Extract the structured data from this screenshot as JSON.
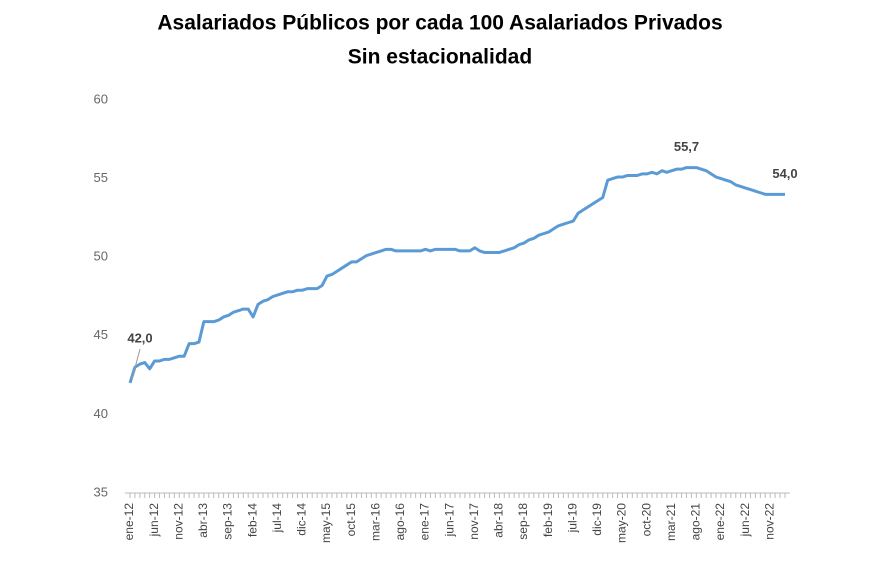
{
  "chart_data": {
    "type": "line",
    "title": "Asalariados Públicos por cada 100 Asalariados Privados",
    "subtitle": "Sin estacionalidad",
    "categories": [
      "ene-12",
      null,
      null,
      null,
      null,
      "jun-12",
      null,
      null,
      null,
      null,
      "nov-12",
      null,
      null,
      null,
      null,
      "abr-13",
      null,
      null,
      null,
      null,
      "sep-13",
      null,
      null,
      null,
      null,
      "feb-14",
      null,
      null,
      null,
      null,
      "jul-14",
      null,
      null,
      null,
      null,
      "dic-14",
      null,
      null,
      null,
      null,
      "may-15",
      null,
      null,
      null,
      null,
      "oct-15",
      null,
      null,
      null,
      null,
      "mar-16",
      null,
      null,
      null,
      null,
      "ago-16",
      null,
      null,
      null,
      null,
      "ene-17",
      null,
      null,
      null,
      null,
      "jun-17",
      null,
      null,
      null,
      null,
      "nov-17",
      null,
      null,
      null,
      null,
      "abr-18",
      null,
      null,
      null,
      null,
      "sep-18",
      null,
      null,
      null,
      null,
      "feb-19",
      null,
      null,
      null,
      null,
      "jul-19",
      null,
      null,
      null,
      null,
      "dic-19",
      null,
      null,
      null,
      null,
      "may-20",
      null,
      null,
      null,
      null,
      "oct-20",
      null,
      null,
      null,
      null,
      "mar-21",
      null,
      null,
      null,
      null,
      "ago-21",
      null,
      null,
      null,
      null,
      "ene-22",
      null,
      null,
      null,
      null,
      "jun-22",
      null,
      null,
      null,
      null,
      "nov-22",
      null,
      null,
      null
    ],
    "values": [
      42.0,
      43.0,
      43.2,
      43.3,
      42.9,
      43.4,
      43.4,
      43.5,
      43.5,
      43.6,
      43.7,
      43.7,
      44.5,
      44.5,
      44.6,
      45.9,
      45.9,
      45.9,
      46.0,
      46.2,
      46.3,
      46.5,
      46.6,
      46.7,
      46.7,
      46.2,
      47.0,
      47.2,
      47.3,
      47.5,
      47.6,
      47.7,
      47.8,
      47.8,
      47.9,
      47.9,
      48.0,
      48.0,
      48.0,
      48.2,
      48.8,
      48.9,
      49.1,
      49.3,
      49.5,
      49.7,
      49.7,
      49.9,
      50.1,
      50.2,
      50.3,
      50.4,
      50.5,
      50.5,
      50.4,
      50.4,
      50.4,
      50.4,
      50.4,
      50.4,
      50.5,
      50.4,
      50.5,
      50.5,
      50.5,
      50.5,
      50.5,
      50.4,
      50.4,
      50.4,
      50.6,
      50.4,
      50.3,
      50.3,
      50.3,
      50.3,
      50.4,
      50.5,
      50.6,
      50.8,
      50.9,
      51.1,
      51.2,
      51.4,
      51.5,
      51.6,
      51.8,
      52.0,
      52.1,
      52.2,
      52.3,
      52.8,
      53.0,
      53.2,
      53.4,
      53.6,
      53.8,
      54.9,
      55.0,
      55.1,
      55.1,
      55.2,
      55.2,
      55.2,
      55.3,
      55.3,
      55.4,
      55.3,
      55.5,
      55.4,
      55.5,
      55.6,
      55.6,
      55.7,
      55.7,
      55.7,
      55.6,
      55.5,
      55.3,
      55.1,
      55.0,
      54.9,
      54.8,
      54.6,
      54.5,
      54.4,
      54.3,
      54.2,
      54.1,
      54.0,
      54.0,
      54.0,
      54.0,
      54.0
    ],
    "value_labels": [
      "42,0",
      null,
      null,
      null,
      null,
      null,
      null,
      null,
      null,
      null,
      null,
      null,
      null,
      null,
      null,
      null,
      null,
      null,
      null,
      null,
      null,
      null,
      null,
      null,
      null,
      null,
      null,
      null,
      null,
      null,
      null,
      null,
      null,
      null,
      null,
      null,
      null,
      null,
      null,
      null,
      null,
      null,
      null,
      null,
      null,
      null,
      null,
      null,
      null,
      null,
      null,
      null,
      null,
      null,
      null,
      null,
      null,
      null,
      null,
      null,
      null,
      null,
      null,
      null,
      null,
      null,
      null,
      null,
      null,
      null,
      null,
      null,
      null,
      null,
      null,
      null,
      null,
      null,
      null,
      null,
      null,
      null,
      null,
      null,
      null,
      null,
      null,
      null,
      null,
      null,
      null,
      null,
      null,
      null,
      null,
      null,
      null,
      null,
      null,
      null,
      null,
      null,
      null,
      null,
      null,
      null,
      null,
      null,
      null,
      null,
      null,
      null,
      null,
      "55,7",
      null,
      null,
      null,
      null,
      null,
      null,
      null,
      null,
      null,
      null,
      null,
      null,
      null,
      null,
      null,
      null,
      null,
      null,
      null,
      "54,0"
    ],
    "color": "#5b9bd5",
    "ylim": [
      35,
      60
    ],
    "yticks": [
      35,
      40,
      45,
      50,
      55,
      60
    ],
    "grid": false
  }
}
